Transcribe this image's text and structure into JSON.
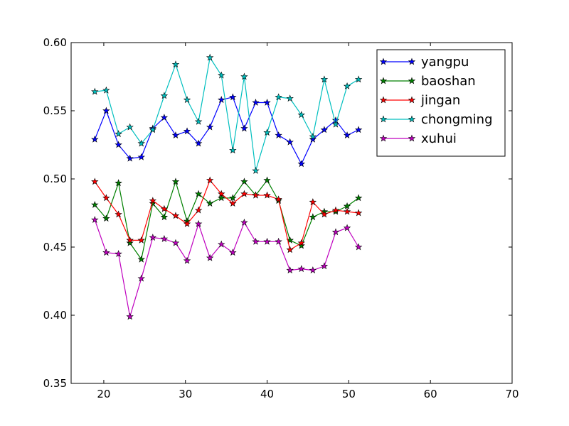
{
  "chart_data": {
    "type": "line",
    "title": "",
    "xlabel": "",
    "ylabel": "",
    "xlim": [
      16,
      70
    ],
    "ylim": [
      0.35,
      0.6
    ],
    "x_ticks": [
      20,
      30,
      40,
      50,
      60,
      70
    ],
    "y_ticks": [
      0.35,
      0.4,
      0.45,
      0.5,
      0.55,
      0.6
    ],
    "x_tick_labels": [
      "20",
      "30",
      "40",
      "50",
      "60",
      "70"
    ],
    "y_tick_labels": [
      "0.35",
      "0.40",
      "0.45",
      "0.50",
      "0.55",
      "0.60"
    ],
    "grid": false,
    "legend_position": "top-right",
    "marker": "star",
    "x": [
      18.9,
      20.3,
      21.8,
      23.2,
      24.6,
      26.0,
      27.4,
      28.8,
      30.2,
      31.6,
      33.0,
      34.4,
      35.8,
      37.2,
      38.6,
      40.0,
      41.4,
      42.8,
      44.2,
      45.6,
      47.0,
      48.4,
      49.8,
      51.2
    ],
    "series": [
      {
        "name": "yangpu",
        "color": "#0000ff",
        "values": [
          0.529,
          0.55,
          0.525,
          0.515,
          0.516,
          0.537,
          0.545,
          0.532,
          0.535,
          0.526,
          0.538,
          0.558,
          0.56,
          0.537,
          0.556,
          0.556,
          0.532,
          0.527,
          0.511,
          0.529,
          0.536,
          0.543,
          0.532,
          0.536
        ]
      },
      {
        "name": "baoshan",
        "color": "#008000",
        "values": [
          0.481,
          0.471,
          0.497,
          0.453,
          0.441,
          0.482,
          0.472,
          0.498,
          0.469,
          0.489,
          0.482,
          0.486,
          0.486,
          0.498,
          0.488,
          0.499,
          0.484,
          0.455,
          0.451,
          0.472,
          0.476,
          0.476,
          0.48,
          0.486
        ]
      },
      {
        "name": "jingan",
        "color": "#ff0000",
        "values": [
          0.498,
          0.486,
          0.474,
          0.455,
          0.455,
          0.484,
          0.478,
          0.473,
          0.467,
          0.477,
          0.499,
          0.489,
          0.482,
          0.489,
          0.488,
          0.488,
          0.485,
          0.448,
          0.453,
          0.483,
          0.474,
          0.477,
          0.476,
          0.475
        ]
      },
      {
        "name": "chongming",
        "color": "#00bfbf",
        "values": [
          0.564,
          0.565,
          0.533,
          0.538,
          0.526,
          0.536,
          0.561,
          0.584,
          0.558,
          0.542,
          0.589,
          0.576,
          0.521,
          0.575,
          0.506,
          0.534,
          0.56,
          0.559,
          0.547,
          0.531,
          0.573,
          0.54,
          0.568,
          0.573
        ]
      },
      {
        "name": "xuhui",
        "color": "#bf00bf",
        "values": [
          0.47,
          0.446,
          0.445,
          0.399,
          0.427,
          0.457,
          0.456,
          0.453,
          0.44,
          0.467,
          0.442,
          0.452,
          0.446,
          0.468,
          0.454,
          0.454,
          0.454,
          0.433,
          0.434,
          0.433,
          0.436,
          0.461,
          0.464,
          0.45
        ]
      }
    ]
  }
}
